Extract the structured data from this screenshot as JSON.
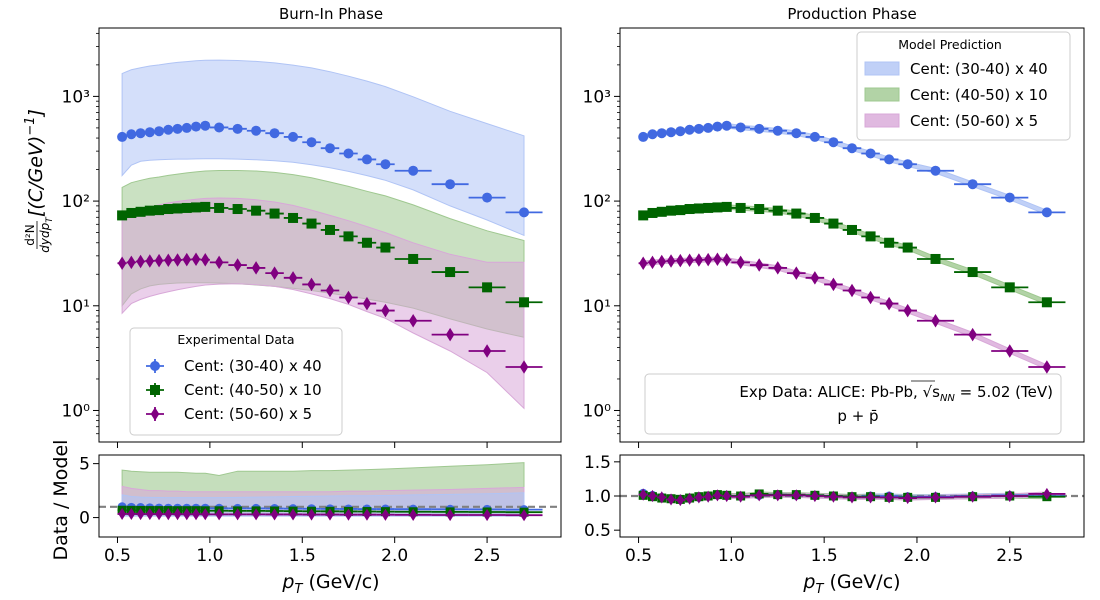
{
  "chart_data": [
    {
      "panel": "top-left",
      "type": "scatter",
      "title": "Burn-In Phase",
      "ylabel": "$\\frac{d^2N}{dydp_T}[(C/GeV)^{-1}]$",
      "yscale": "log",
      "ylim": [
        0.5,
        4500
      ],
      "yticks": [
        {
          "value": 1,
          "label": "10⁰"
        },
        {
          "value": 10,
          "label": "10¹"
        },
        {
          "value": 100,
          "label": "10²"
        },
        {
          "value": 1000,
          "label": "10³"
        }
      ],
      "legend": {
        "title": "Experimental Data",
        "location": "lower-left",
        "entries": [
          "Cent: (30-40) x 40",
          "Cent: (40-50) x 10",
          "Cent: (50-60) x 5"
        ]
      },
      "x": [
        0.525,
        0.575,
        0.625,
        0.675,
        0.725,
        0.775,
        0.825,
        0.875,
        0.925,
        0.975,
        1.05,
        1.15,
        1.25,
        1.35,
        1.45,
        1.55,
        1.65,
        1.75,
        1.85,
        1.95,
        2.1,
        2.3,
        2.5,
        2.7
      ],
      "xerr": [
        0.025,
        0.025,
        0.025,
        0.025,
        0.025,
        0.025,
        0.025,
        0.025,
        0.025,
        0.025,
        0.05,
        0.05,
        0.05,
        0.05,
        0.05,
        0.05,
        0.05,
        0.05,
        0.05,
        0.05,
        0.1,
        0.1,
        0.1,
        0.1
      ],
      "series": [
        {
          "values": [
            410,
            435,
            445,
            455,
            465,
            480,
            490,
            500,
            515,
            525,
            505,
            490,
            470,
            445,
            410,
            365,
            320,
            285,
            250,
            225,
            195,
            145,
            108,
            78
          ],
          "band_low": [
            175,
            220,
            240,
            245,
            248,
            250,
            252,
            252,
            253,
            254,
            254,
            252,
            248,
            243,
            235,
            222,
            208,
            192,
            175,
            158,
            128,
            90,
            66,
            47
          ],
          "band_high": [
            1650,
            1800,
            1880,
            1950,
            2000,
            2060,
            2110,
            2150,
            2190,
            2210,
            2220,
            2200,
            2160,
            2090,
            1990,
            1870,
            1720,
            1560,
            1400,
            1240,
            990,
            720,
            550,
            420
          ],
          "color": "#4169E1",
          "band_color": "#b0c4f5"
        },
        {
          "values": [
            73,
            77,
            79,
            81,
            82,
            84,
            85,
            86,
            87,
            88,
            86,
            84,
            81,
            76,
            69,
            61,
            53,
            46,
            40,
            36,
            28,
            21,
            15,
            10.8
          ],
          "band_low": [
            10,
            13,
            14.5,
            15.5,
            16,
            16.3,
            16.5,
            16.6,
            16.6,
            16.6,
            16.5,
            16.2,
            15.8,
            15.3,
            14.7,
            14,
            13.2,
            12.4,
            11.6,
            10.8,
            9.5,
            7.5,
            6,
            5
          ],
          "band_high": [
            135,
            150,
            158,
            165,
            170,
            176,
            181,
            186,
            190,
            194,
            196,
            196,
            194,
            188,
            179,
            167,
            152,
            138,
            124,
            112,
            92,
            68,
            52,
            42
          ],
          "color": "#006400",
          "band_color": "#9fc890"
        },
        {
          "values": [
            25.5,
            26,
            26.5,
            26.8,
            27,
            27.2,
            27.4,
            27.6,
            27.8,
            27.5,
            26,
            24.5,
            23,
            20.5,
            18.5,
            16,
            14,
            12,
            10.5,
            9,
            7.2,
            5.3,
            3.7,
            2.6
          ],
          "band_low": [
            8.5,
            10.5,
            11.5,
            12.3,
            13,
            13.6,
            14.2,
            14.8,
            15.3,
            15.8,
            16.1,
            16.2,
            15.9,
            15.3,
            14.3,
            13,
            11.7,
            10.3,
            8.8,
            7.6,
            5.5,
            3.7,
            2.3,
            1.05
          ],
          "band_high": [
            66,
            77,
            83,
            88,
            92,
            96,
            99,
            102,
            104,
            106,
            107,
            106,
            103,
            98,
            91,
            82,
            73,
            65,
            57,
            50,
            40,
            31,
            26,
            26
          ],
          "color": "#800080",
          "band_color": "#d8a8d8"
        }
      ]
    },
    {
      "panel": "top-right",
      "type": "scatter",
      "title": "Production Phase",
      "yscale": "log",
      "ylim": [
        0.5,
        4500
      ],
      "yticks": [
        {
          "value": 1,
          "label": "10⁰"
        },
        {
          "value": 10,
          "label": "10¹"
        },
        {
          "value": 100,
          "label": "10²"
        },
        {
          "value": 1000,
          "label": "10³"
        }
      ],
      "legend": {
        "title": "Model Prediction",
        "location": "upper-right",
        "entries": [
          "Cent: (30-40) x 40",
          "Cent: (40-50) x 10",
          "Cent: (50-60) x 5"
        ]
      },
      "annotation": {
        "line1": "Exp Data: ALICE: Pb-Pb, √s",
        "sub": "NN",
        "line1b": " = 5.02 (TeV)",
        "line2": "p + p̄"
      },
      "band_half_width_fraction": 0.05
    },
    {
      "panel": "bottom-left",
      "type": "scatter",
      "xlabel": "p_T (GeV/c)",
      "ylabel": "Data / Model",
      "ylim": [
        -1.8,
        5.8
      ],
      "yticks": [
        0,
        5
      ],
      "xlim": [
        0.4,
        2.9
      ],
      "xticks": [
        0.5,
        1.0,
        1.5,
        2.0,
        2.5
      ],
      "reference_line": 1,
      "series": [
        {
          "values": [
            1.0,
            0.95,
            0.93,
            0.9,
            0.88,
            0.87,
            0.87,
            0.87,
            0.87,
            0.87,
            0.86,
            0.85,
            0.85,
            0.84,
            0.83,
            0.82,
            0.81,
            0.8,
            0.79,
            0.79,
            0.78,
            0.77,
            0.76,
            0.74
          ],
          "band_low": [
            0.15,
            0.14,
            0.14,
            0.14,
            0.14,
            0.14,
            0.14,
            0.14,
            0.14,
            0.14,
            0.14,
            0.14,
            0.14,
            0.14,
            0.14,
            0.14,
            0.14,
            0.14,
            0.14,
            0.14,
            0.14,
            0.14,
            0.14,
            0.14
          ],
          "band_high": [
            2.1,
            1.95,
            1.9,
            1.87,
            1.86,
            1.85,
            1.85,
            1.85,
            1.85,
            1.85,
            1.85,
            1.87,
            1.9,
            1.92,
            1.95,
            1.98,
            2.0,
            2.02,
            2.03,
            2.05,
            2.1,
            2.15,
            2.2,
            2.3
          ],
          "color": "#4169E1",
          "band_color": "#b0c4f5"
        },
        {
          "values": [
            0.68,
            0.67,
            0.66,
            0.65,
            0.65,
            0.65,
            0.64,
            0.64,
            0.64,
            0.63,
            0.63,
            0.62,
            0.62,
            0.61,
            0.6,
            0.59,
            0.58,
            0.57,
            0.56,
            0.55,
            0.54,
            0.53,
            0.52,
            0.5
          ],
          "band_low": [
            0.4,
            0.38,
            0.37,
            0.36,
            0.36,
            0.36,
            0.36,
            0.35,
            0.35,
            0.35,
            0.34,
            0.34,
            0.34,
            0.33,
            0.33,
            0.33,
            0.33,
            0.33,
            0.33,
            0.32,
            0.32,
            0.32,
            0.33,
            0.34
          ],
          "band_high": [
            4.4,
            4.3,
            4.25,
            4.2,
            4.2,
            4.2,
            4.2,
            4.15,
            4.1,
            4.1,
            3.9,
            4.3,
            4.3,
            4.3,
            4.3,
            4.35,
            4.35,
            4.4,
            4.45,
            4.5,
            4.6,
            4.75,
            4.9,
            5.1
          ],
          "color": "#006400",
          "band_color": "#9fc890"
        },
        {
          "values": [
            0.34,
            0.34,
            0.33,
            0.33,
            0.32,
            0.32,
            0.32,
            0.31,
            0.31,
            0.31,
            0.3,
            0.3,
            0.3,
            0.29,
            0.29,
            0.28,
            0.28,
            0.27,
            0.27,
            0.26,
            0.25,
            0.24,
            0.24,
            0.22
          ],
          "band_low": [
            0.25,
            0.24,
            0.24,
            0.24,
            0.23,
            0.23,
            0.23,
            0.23,
            0.23,
            0.23,
            0.23,
            0.23,
            0.22,
            0.22,
            0.22,
            0.22,
            0.22,
            0.22,
            0.21,
            0.21,
            0.21,
            0.2,
            0.2,
            0.2
          ],
          "band_high": [
            2.9,
            2.7,
            2.6,
            2.5,
            2.5,
            2.45,
            2.45,
            2.4,
            2.4,
            2.4,
            2.4,
            2.4,
            2.4,
            2.4,
            2.4,
            2.4,
            2.4,
            2.45,
            2.45,
            2.5,
            2.55,
            2.6,
            2.7,
            2.8
          ],
          "color": "#800080",
          "band_color": "#d8a8d8"
        }
      ]
    },
    {
      "panel": "bottom-right",
      "type": "scatter",
      "xlabel": "p_T (GeV/c)",
      "ylim": [
        0.4,
        1.6
      ],
      "yticks": [
        0.5,
        1.0,
        1.5
      ],
      "xlim": [
        0.4,
        2.9
      ],
      "xticks": [
        0.5,
        1.0,
        1.5,
        2.0,
        2.5
      ],
      "reference_line": 1,
      "series": [
        {
          "values": [
            1.04,
            1.01,
            0.98,
            0.96,
            0.95,
            0.97,
            0.98,
            1.0,
            1.02,
            1.01,
            1.0,
            1.01,
            1.02,
            1.01,
            1.01,
            1.0,
            0.99,
            1.0,
            1.0,
            0.99,
            0.99,
            1.0,
            1.01,
            1.0
          ],
          "color": "#4169E1",
          "band_color": "#b0c4f5"
        },
        {
          "values": [
            1.01,
            0.99,
            0.97,
            0.96,
            0.95,
            0.97,
            0.99,
            1.0,
            1.02,
            1.01,
            1.0,
            1.03,
            1.02,
            1.02,
            1.01,
            1.0,
            0.99,
            0.99,
            0.98,
            0.98,
            0.98,
            0.99,
            1.0,
            0.99
          ],
          "color": "#006400",
          "band_color": "#9fc890"
        },
        {
          "values": [
            1.02,
            1.0,
            0.98,
            0.95,
            0.94,
            0.96,
            0.98,
            0.99,
            1.01,
            1.0,
            0.99,
            1.01,
            1.01,
            1.01,
            1.0,
            0.99,
            0.98,
            0.98,
            0.98,
            0.97,
            0.98,
            0.99,
            1.0,
            1.03
          ],
          "color": "#800080",
          "band_color": "#d8a8d8"
        }
      ]
    }
  ]
}
